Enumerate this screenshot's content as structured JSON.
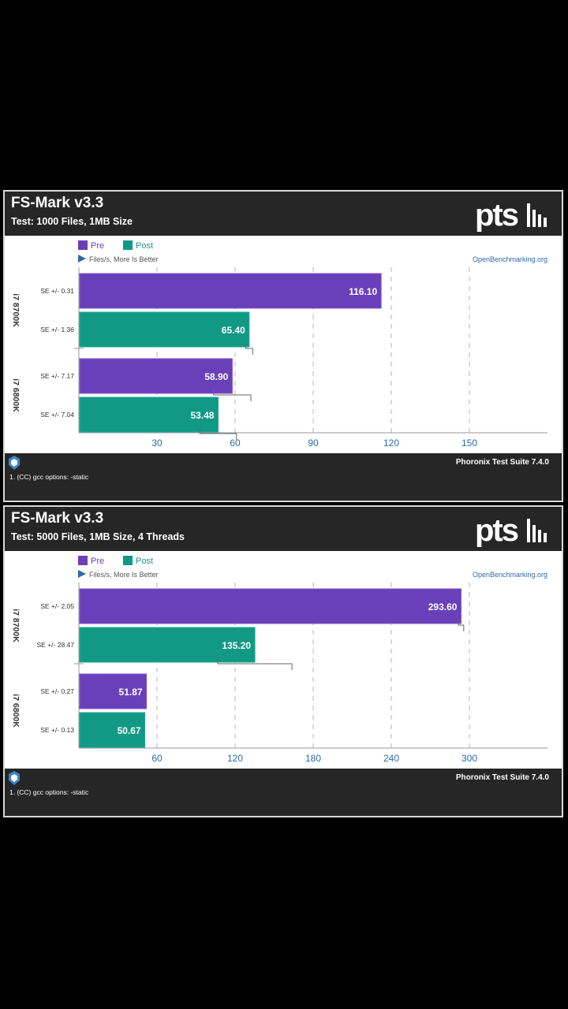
{
  "footer": {
    "brand": "Phoronix Test Suite 7.4.0",
    "note": "1. (CC) gcc options: -static"
  },
  "legend": {
    "pre_label": "Pre",
    "post_label": "Post",
    "pre_color": "#6a3fba",
    "post_color": "#119986",
    "direction": "Files/s, More Is Better",
    "source": "OpenBenchmarking.org"
  },
  "chart_data": [
    {
      "type": "bar",
      "orientation": "horizontal",
      "title": "FS-Mark v3.3",
      "subtitle": "Test: 1000 Files, 1MB Size",
      "xlabel": "Files/s, More Is Better",
      "xlim": [
        0,
        180
      ],
      "xticks": [
        30,
        60,
        90,
        120,
        150
      ],
      "legend_position": "top-left",
      "grid": true,
      "categories": [
        "i7 8700K",
        "i7 6800K"
      ],
      "series": [
        {
          "name": "Pre",
          "values": [
            116.1,
            58.9
          ],
          "errors": [
            "SE +/- 0.31",
            "SE +/- 7.17"
          ],
          "se": [
            0.31,
            7.17
          ]
        },
        {
          "name": "Post",
          "values": [
            65.4,
            53.48
          ],
          "errors": [
            "SE +/- 1.36",
            "SE +/- 7.04"
          ],
          "se": [
            1.36,
            7.04
          ]
        }
      ]
    },
    {
      "type": "bar",
      "orientation": "horizontal",
      "title": "FS-Mark v3.3",
      "subtitle": "Test: 5000 Files, 1MB Size, 4 Threads",
      "xlabel": "Files/s, More Is Better",
      "xlim": [
        0,
        360
      ],
      "xticks": [
        60,
        120,
        180,
        240,
        300
      ],
      "legend_position": "top-left",
      "grid": true,
      "categories": [
        "i7 8700K",
        "i7 6800K"
      ],
      "series": [
        {
          "name": "Pre",
          "values": [
            293.6,
            51.87
          ],
          "errors": [
            "SE +/- 2.05",
            "SE +/- 0.27"
          ],
          "se": [
            2.05,
            0.27
          ]
        },
        {
          "name": "Post",
          "values": [
            135.2,
            50.67
          ],
          "errors": [
            "SE +/- 28.47",
            "SE +/- 0.13"
          ],
          "se": [
            28.47,
            0.13
          ]
        }
      ]
    }
  ]
}
